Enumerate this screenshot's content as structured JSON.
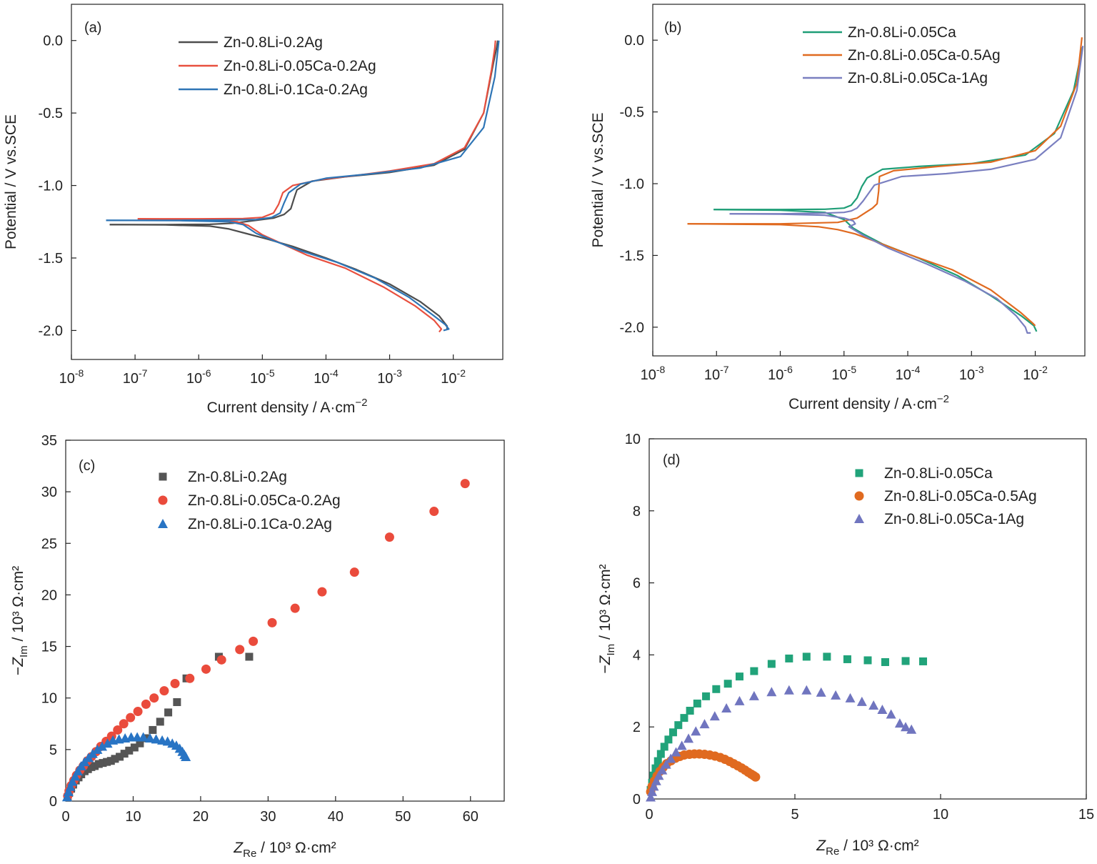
{
  "chart_data": [
    {
      "panel": "(a)",
      "type": "line",
      "xscale": "log",
      "xlim": [
        1e-08,
        0.06
      ],
      "ylim": [
        -2.2,
        0.25
      ],
      "xticks": [
        1e-08,
        1e-07,
        1e-06,
        1e-05,
        0.0001,
        0.001,
        0.01
      ],
      "yticks": [
        0.0,
        -0.5,
        -1.0,
        -1.5,
        -2.0
      ],
      "ytick_labels": [
        "0.0",
        "-0.5",
        "-1.0",
        "-1.5",
        "-2.0"
      ],
      "xlabel": "Current density / A·cm⁻²",
      "ylabel": "Potential / V vs.SCE",
      "legend_position": "top-center",
      "series": [
        {
          "name": "Zn-0.8Li-0.2Ag",
          "color": "#4d4d4d",
          "x": [
            4e-08,
            3e-07,
            1.5e-06,
            3.5e-06,
            8e-06,
            1.5e-05,
            2.2e-05,
            2.8e-05,
            3.2e-05,
            3.5e-05,
            6e-05,
            0.0002,
            0.001,
            0.005,
            0.015,
            0.03,
            0.043,
            0.048,
            0.05
          ],
          "y": [
            -1.27,
            -1.27,
            -1.268,
            -1.26,
            -1.24,
            -1.225,
            -1.2,
            -1.16,
            -1.08,
            -1.03,
            -0.97,
            -0.94,
            -0.91,
            -0.86,
            -0.75,
            -0.5,
            -0.15,
            -0.05,
            0.0
          ],
          "x2": [
            4e-08,
            3e-07,
            1.5e-06,
            3e-06,
            6e-06,
            1.2e-05,
            3e-05,
            0.0001,
            0.0003,
            0.001,
            0.003,
            0.006,
            0.008,
            0.008
          ],
          "y2": [
            -1.27,
            -1.272,
            -1.28,
            -1.3,
            -1.335,
            -1.37,
            -1.42,
            -1.5,
            -1.58,
            -1.68,
            -1.8,
            -1.9,
            -1.97,
            -1.99
          ]
        },
        {
          "name": "Zn-0.8Li-0.05Ca-0.2Ag",
          "color": "#e8503f",
          "x": [
            1.1e-07,
            1e-06,
            5e-06,
            1e-05,
            1.5e-05,
            1.8e-05,
            2.1e-05,
            3e-05,
            8e-05,
            0.0003,
            0.001,
            0.005,
            0.015,
            0.03,
            0.04,
            0.045,
            0.046
          ],
          "y": [
            -1.23,
            -1.23,
            -1.228,
            -1.22,
            -1.19,
            -1.13,
            -1.05,
            -1.0,
            -0.96,
            -0.93,
            -0.9,
            -0.85,
            -0.74,
            -0.5,
            -0.2,
            -0.05,
            0.0
          ],
          "x2": [
            1.1e-07,
            1e-06,
            4e-06,
            6e-06,
            1e-05,
            2e-05,
            5e-05,
            0.0002,
            0.0008,
            0.0025,
            0.005,
            0.0065,
            0.006
          ],
          "y2": [
            -1.23,
            -1.235,
            -1.25,
            -1.275,
            -1.34,
            -1.4,
            -1.48,
            -1.57,
            -1.7,
            -1.83,
            -1.93,
            -1.99,
            -2.01
          ]
        },
        {
          "name": "Zn-0.8Li-0.1Ca-0.2Ag",
          "color": "#2e75b6",
          "x": [
            3.5e-08,
            5e-07,
            3e-06,
            8e-06,
            1.4e-05,
            1.9e-05,
            2.2e-05,
            2.6e-05,
            4e-05,
            0.0001,
            0.0005,
            0.003,
            0.013,
            0.03,
            0.045,
            0.052
          ],
          "y": [
            -1.24,
            -1.24,
            -1.238,
            -1.235,
            -1.22,
            -1.19,
            -1.12,
            -1.05,
            -0.99,
            -0.95,
            -0.92,
            -0.88,
            -0.8,
            -0.6,
            -0.25,
            0.0
          ],
          "x2": [
            3.5e-08,
            5e-07,
            3e-06,
            5e-06,
            8e-06,
            1.5e-05,
            4e-05,
            0.00015,
            0.0006,
            0.002,
            0.005,
            0.0075,
            0.0085,
            0.007
          ],
          "y2": [
            -1.24,
            -1.242,
            -1.25,
            -1.27,
            -1.33,
            -1.38,
            -1.45,
            -1.53,
            -1.64,
            -1.77,
            -1.9,
            -1.96,
            -1.99,
            -2.0
          ]
        }
      ]
    },
    {
      "panel": "(b)",
      "type": "line",
      "xscale": "log",
      "xlim": [
        1e-08,
        0.06
      ],
      "ylim": [
        -2.2,
        0.25
      ],
      "xticks": [
        1e-08,
        1e-07,
        1e-06,
        1e-05,
        0.0001,
        0.001,
        0.01
      ],
      "yticks": [
        0.0,
        -0.5,
        -1.0,
        -1.5,
        -2.0
      ],
      "ytick_labels": [
        "0.0",
        "-0.5",
        "-1.0",
        "-1.5",
        "-2.0"
      ],
      "xlabel": "Current density / A·cm⁻²",
      "ylabel": "Potential / V vs.SCE",
      "legend_position": "top-center",
      "series": [
        {
          "name": "Zn-0.8Li-0.05Ca",
          "color": "#1f9e77",
          "x": [
            9e-08,
            1e-06,
            5e-06,
            1e-05,
            1.3e-05,
            1.6e-05,
            1.9e-05,
            2.3e-05,
            4e-05,
            0.00015,
            0.001,
            0.007,
            0.02,
            0.04,
            0.055
          ],
          "y": [
            -1.18,
            -1.18,
            -1.178,
            -1.17,
            -1.15,
            -1.1,
            -1.02,
            -0.96,
            -0.9,
            -0.88,
            -0.86,
            -0.8,
            -0.65,
            -0.35,
            -0.05
          ],
          "x2": [
            9e-08,
            1e-06,
            5e-06,
            1e-05,
            1.4e-05,
            2e-05,
            4e-05,
            0.00015,
            0.0006,
            0.002,
            0.006,
            0.0095,
            0.0105
          ],
          "y2": [
            -1.18,
            -1.185,
            -1.2,
            -1.25,
            -1.31,
            -1.35,
            -1.42,
            -1.52,
            -1.64,
            -1.78,
            -1.92,
            -1.99,
            -2.03
          ]
        },
        {
          "name": "Zn-0.8Li-0.05Ca-0.5Ag",
          "color": "#e06a20",
          "x": [
            3.5e-08,
            1e-06,
            8e-06,
            1.6e-05,
            2.2e-05,
            2.8e-05,
            3.3e-05,
            3.5e-05,
            3.6e-05,
            6e-05,
            0.0003,
            0.002,
            0.01,
            0.025,
            0.045,
            0.054
          ],
          "y": [
            -1.28,
            -1.28,
            -1.27,
            -1.24,
            -1.2,
            -1.17,
            -1.14,
            -1.05,
            -0.95,
            -0.91,
            -0.88,
            -0.85,
            -0.77,
            -0.6,
            -0.3,
            0.02
          ],
          "x2": [
            3.5e-08,
            1e-06,
            4e-06,
            8e-06,
            1.5e-05,
            3e-05,
            0.0001,
            0.0005,
            0.002,
            0.006,
            0.009,
            0.01
          ],
          "y2": [
            -1.28,
            -1.285,
            -1.3,
            -1.32,
            -1.35,
            -1.4,
            -1.49,
            -1.6,
            -1.74,
            -1.9,
            -1.97,
            -1.99
          ]
        },
        {
          "name": "Zn-0.8Li-0.05Ca-1Ag",
          "color": "#7a7fc0",
          "x": [
            1.6e-07,
            1e-06,
            5e-06,
            1e-05,
            1.3e-05,
            1.6e-05,
            2e-05,
            3e-05,
            8e-05,
            0.0004,
            0.002,
            0.01,
            0.025,
            0.045,
            0.056
          ],
          "y": [
            -1.21,
            -1.21,
            -1.205,
            -1.2,
            -1.19,
            -1.17,
            -1.12,
            -1.01,
            -0.95,
            -0.93,
            -0.9,
            -0.83,
            -0.68,
            -0.35,
            -0.04
          ],
          "x2": [
            1.6e-07,
            1e-06,
            5e-06,
            1e-05,
            1.4e-05,
            1.5e-05,
            1.2e-05,
            2e-05,
            5e-05,
            0.0002,
            0.0008,
            0.0025,
            0.005,
            0.007,
            0.0075,
            0.0085
          ],
          "y2": [
            -1.21,
            -1.212,
            -1.22,
            -1.24,
            -1.26,
            -1.28,
            -1.3,
            -1.36,
            -1.45,
            -1.56,
            -1.68,
            -1.8,
            -1.92,
            -2.0,
            -2.04,
            -2.04
          ]
        }
      ]
    },
    {
      "panel": "(c)",
      "type": "scatter",
      "xlim": [
        0,
        65
      ],
      "ylim": [
        0,
        35
      ],
      "xticks": [
        0,
        10,
        20,
        30,
        40,
        50,
        60
      ],
      "yticks": [
        0,
        5,
        10,
        15,
        20,
        25,
        30,
        35
      ],
      "xlabel": "Z_Re / 10³ Ω·cm²",
      "ylabel": "−Z_Im / 10³ Ω·cm²",
      "legend_position": "top-left",
      "series": [
        {
          "name": "Zn-0.8Li-0.2Ag",
          "marker": "square",
          "color": "#555555",
          "x": [
            0.3,
            0.5,
            0.8,
            1.1,
            1.5,
            1.9,
            2.3,
            2.8,
            3.3,
            3.8,
            4.3,
            4.9,
            5.5,
            6.1,
            6.7,
            7.3,
            8.0,
            8.7,
            9.4,
            10.2,
            11.0,
            11.9,
            12.9,
            14.0,
            15.2,
            16.5,
            17.9,
            22.7,
            27.2
          ],
          "y": [
            0.4,
            0.8,
            1.2,
            1.6,
            2.0,
            2.3,
            2.6,
            2.9,
            3.1,
            3.3,
            3.4,
            3.6,
            3.7,
            3.8,
            3.9,
            4.1,
            4.3,
            4.6,
            4.9,
            5.2,
            5.6,
            6.1,
            6.9,
            7.7,
            8.6,
            9.6,
            11.9,
            14.0,
            14.0
          ]
        },
        {
          "name": "Zn-0.8Li-0.05Ca-0.2Ag",
          "marker": "circle",
          "color": "#ea4b3c",
          "x": [
            0.3,
            0.5,
            0.8,
            1.2,
            1.6,
            2.1,
            2.6,
            3.2,
            3.8,
            4.5,
            5.2,
            6.0,
            6.8,
            7.7,
            8.6,
            9.6,
            10.7,
            11.9,
            13.1,
            14.6,
            16.2,
            18.4,
            20.8,
            23.1,
            25.8,
            27.8,
            30.6,
            34.0,
            38.0,
            42.8,
            48.0,
            54.6,
            59.2
          ],
          "y": [
            0.5,
            1.0,
            1.5,
            2.0,
            2.5,
            3.0,
            3.4,
            3.9,
            4.3,
            4.8,
            5.3,
            5.8,
            6.3,
            6.9,
            7.5,
            8.1,
            8.7,
            9.4,
            10.0,
            10.7,
            11.4,
            11.9,
            12.8,
            13.7,
            14.7,
            15.5,
            17.3,
            18.7,
            20.3,
            22.2,
            25.6,
            28.1,
            30.8
          ]
        },
        {
          "name": "Zn-0.8Li-0.1Ca-0.2Ag",
          "marker": "triangle",
          "color": "#2874c4",
          "x": [
            0.2,
            0.4,
            0.7,
            1.0,
            1.4,
            1.8,
            2.3,
            2.8,
            3.4,
            4.0,
            4.7,
            5.4,
            6.2,
            7.0,
            7.9,
            8.8,
            9.7,
            10.6,
            11.5,
            12.5,
            13.4,
            14.3,
            15.1,
            15.8,
            16.4,
            16.9,
            17.3,
            17.6,
            17.8
          ],
          "y": [
            0.4,
            0.9,
            1.4,
            1.9,
            2.4,
            2.9,
            3.4,
            3.8,
            4.2,
            4.6,
            5.0,
            5.3,
            5.6,
            5.9,
            6.0,
            6.1,
            6.2,
            6.2,
            6.2,
            6.1,
            6.0,
            5.9,
            5.8,
            5.6,
            5.4,
            5.1,
            4.8,
            4.5,
            4.3
          ]
        }
      ]
    },
    {
      "panel": "(d)",
      "type": "scatter",
      "xlim": [
        0,
        15
      ],
      "ylim": [
        0,
        10
      ],
      "xticks": [
        0,
        5,
        10,
        15
      ],
      "yticks": [
        0,
        2,
        4,
        6,
        8,
        10
      ],
      "xlabel": "Z_Re / 10³ Ω·cm²",
      "ylabel": "−Z_Im / 10³ Ω·cm²",
      "legend_position": "top-right",
      "series": [
        {
          "name": "Zn-0.8Li-0.05Ca",
          "marker": "square",
          "color": "#21a37a",
          "x": [
            0.05,
            0.1,
            0.15,
            0.22,
            0.3,
            0.4,
            0.52,
            0.66,
            0.82,
            1.0,
            1.2,
            1.4,
            1.65,
            1.95,
            2.3,
            2.7,
            3.1,
            3.6,
            4.2,
            4.8,
            5.4,
            6.1,
            6.8,
            7.5,
            8.1,
            8.8,
            9.4
          ],
          "y": [
            0.25,
            0.45,
            0.65,
            0.85,
            1.05,
            1.25,
            1.45,
            1.65,
            1.85,
            2.05,
            2.25,
            2.45,
            2.65,
            2.85,
            3.05,
            3.2,
            3.4,
            3.55,
            3.75,
            3.9,
            3.95,
            3.95,
            3.88,
            3.85,
            3.8,
            3.83,
            3.82
          ]
        },
        {
          "name": "Zn-0.8Li-0.05Ca-0.5Ag",
          "marker": "circle",
          "color": "#e06a20",
          "x": [
            0.05,
            0.1,
            0.18,
            0.27,
            0.37,
            0.48,
            0.6,
            0.75,
            0.9,
            1.05,
            1.2,
            1.38,
            1.55,
            1.72,
            1.9,
            2.08,
            2.26,
            2.44,
            2.6,
            2.76,
            2.9,
            3.04,
            3.17,
            3.29,
            3.4,
            3.5,
            3.58,
            3.65
          ],
          "y": [
            0.2,
            0.35,
            0.5,
            0.64,
            0.77,
            0.88,
            0.98,
            1.06,
            1.13,
            1.18,
            1.22,
            1.24,
            1.25,
            1.25,
            1.24,
            1.22,
            1.19,
            1.15,
            1.1,
            1.04,
            0.98,
            0.92,
            0.86,
            0.8,
            0.74,
            0.69,
            0.65,
            0.61
          ]
        },
        {
          "name": "Zn-0.8Li-0.05Ca-1Ag",
          "marker": "triangle",
          "color": "#7075bf",
          "x": [
            0.05,
            0.1,
            0.16,
            0.24,
            0.33,
            0.45,
            0.58,
            0.74,
            0.92,
            1.12,
            1.35,
            1.6,
            1.9,
            2.25,
            2.65,
            3.1,
            3.6,
            4.2,
            4.8,
            5.4,
            5.9,
            6.4,
            6.9,
            7.3,
            7.7,
            8.0,
            8.3,
            8.6,
            8.8,
            9.0
          ],
          "y": [
            0.05,
            0.2,
            0.35,
            0.5,
            0.65,
            0.8,
            0.96,
            1.12,
            1.3,
            1.48,
            1.68,
            1.88,
            2.08,
            2.3,
            2.52,
            2.72,
            2.86,
            2.97,
            3.02,
            3.02,
            2.96,
            2.88,
            2.8,
            2.7,
            2.6,
            2.48,
            2.35,
            2.1,
            2.0,
            1.93
          ]
        }
      ]
    }
  ]
}
